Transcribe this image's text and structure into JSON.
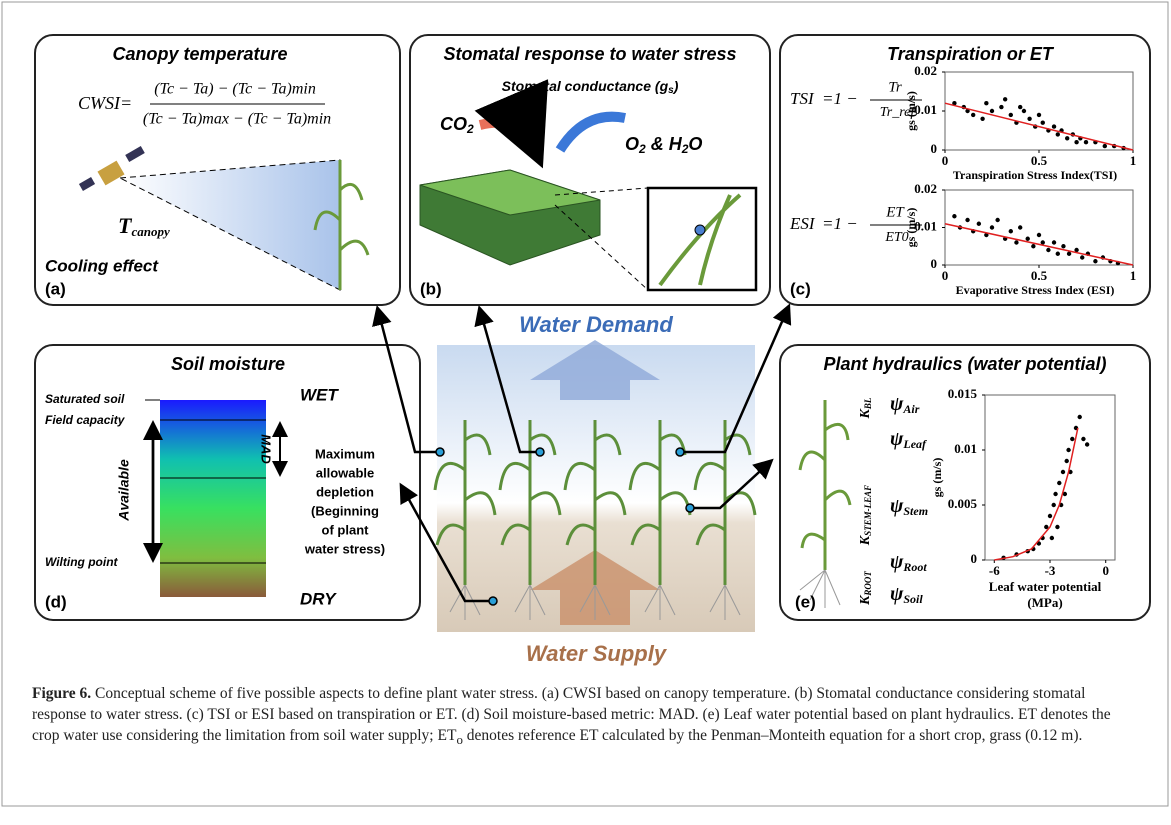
{
  "panel_a": {
    "title": "Canopy temperature",
    "formula": {
      "lhs": "CWSI=",
      "numerator": "(Tc − Ta) − (Tc − Ta)min",
      "denominator": "(Tc − Ta)max − (Tc − Ta)min"
    },
    "canopy_label": {
      "symbol": "T",
      "subscript": "canopy"
    },
    "effect": "Cooling effect",
    "tag": "(a)"
  },
  "panel_b": {
    "title": "Stomatal response to water stress",
    "conductance": {
      "prefix": "Stomatal conductance (",
      "symbol": "g",
      "subscript": "s",
      "suffix": ")"
    },
    "input": [
      "CO",
      "2"
    ],
    "output": [
      "O",
      "2",
      " & H",
      "2",
      "O"
    ],
    "tag": "(b)"
  },
  "panel_c": {
    "title": "Transpiration or ET",
    "tag": "(c)",
    "formulas": [
      {
        "lhs": "TSI",
        "op": "=1 −",
        "numerator": "Tr",
        "denominator": "Tr_ref"
      },
      {
        "lhs": "ESI",
        "op": "=1 −",
        "numerator": "ET",
        "denominator": "ET0"
      }
    ],
    "plots": [
      {
        "ylabel": "gs (m/s)",
        "xlabel": "Transpiration Stress Index(TSI)",
        "xlim": [
          0,
          1
        ],
        "ylim": [
          0,
          0.02
        ],
        "xticks": [
          0,
          0.5,
          1
        ],
        "yticks": [
          0,
          0.01,
          0.02
        ],
        "x": [
          0.05,
          0.1,
          0.12,
          0.15,
          0.2,
          0.22,
          0.25,
          0.3,
          0.32,
          0.35,
          0.38,
          0.4,
          0.42,
          0.45,
          0.48,
          0.5,
          0.52,
          0.55,
          0.58,
          0.6,
          0.62,
          0.65,
          0.68,
          0.7,
          0.72,
          0.75,
          0.8,
          0.85,
          0.9,
          0.95
        ],
        "y": [
          0.012,
          0.011,
          0.01,
          0.009,
          0.008,
          0.012,
          0.01,
          0.011,
          0.013,
          0.009,
          0.007,
          0.011,
          0.01,
          0.008,
          0.006,
          0.009,
          0.007,
          0.005,
          0.006,
          0.004,
          0.005,
          0.003,
          0.004,
          0.002,
          0.003,
          0.002,
          0.002,
          0.001,
          0.001,
          0.0005
        ],
        "trend": {
          "x": [
            0,
            1
          ],
          "y": [
            0.012,
            0
          ]
        }
      },
      {
        "ylabel": "gs (m/s)",
        "xlabel": "Evaporative Stress Index (ESI)",
        "xlim": [
          0,
          1
        ],
        "ylim": [
          0,
          0.02
        ],
        "xticks": [
          0,
          0.5,
          1
        ],
        "yticks": [
          0,
          0.01,
          0.02
        ],
        "x": [
          0.05,
          0.08,
          0.12,
          0.15,
          0.18,
          0.22,
          0.25,
          0.28,
          0.32,
          0.35,
          0.38,
          0.4,
          0.44,
          0.47,
          0.5,
          0.52,
          0.55,
          0.58,
          0.6,
          0.63,
          0.66,
          0.7,
          0.73,
          0.76,
          0.8,
          0.84,
          0.88,
          0.92
        ],
        "y": [
          0.013,
          0.01,
          0.012,
          0.009,
          0.011,
          0.008,
          0.01,
          0.012,
          0.007,
          0.009,
          0.006,
          0.01,
          0.007,
          0.005,
          0.008,
          0.006,
          0.004,
          0.006,
          0.003,
          0.005,
          0.003,
          0.004,
          0.002,
          0.003,
          0.001,
          0.002,
          0.001,
          0.0005
        ],
        "trend": {
          "x": [
            0,
            1
          ],
          "y": [
            0.011,
            0
          ]
        }
      }
    ]
  },
  "center": {
    "top": "Water Demand",
    "bottom": "Water Supply"
  },
  "panel_d": {
    "title": "Soil moisture",
    "levels": [
      "Saturated soil",
      "Field capacity",
      "Wilting point"
    ],
    "available": "Available",
    "wet": "WET",
    "dry": "DRY",
    "mad": "MAD",
    "mad_note": [
      "Maximum",
      "allowable",
      "depletion",
      "(Beginning",
      "of plant",
      "water stress)"
    ],
    "tag": "(d)"
  },
  "panel_e": {
    "title": "Plant hydraulics (water potential)",
    "tag": "(e)",
    "potentials": [
      {
        "symbol": "ψ",
        "subscript": "Air"
      },
      {
        "symbol": "ψ",
        "subscript": "Leaf"
      },
      {
        "symbol": "ψ",
        "subscript": "Stem"
      },
      {
        "symbol": "ψ",
        "subscript": "Root"
      },
      {
        "symbol": "ψ",
        "subscript": "Soil"
      }
    ],
    "conductances": [
      {
        "symbol": "K",
        "subscript": "BL"
      },
      {
        "symbol": "K",
        "subscript": "STEM-LEAF"
      },
      {
        "symbol": "K",
        "subscript": "ROOT"
      }
    ],
    "plot": {
      "ylabel": "gs (m/s)",
      "xlabel": [
        "Leaf water potential",
        "(MPa)"
      ],
      "xlim": [
        -6.5,
        0.5
      ],
      "ylim": [
        0,
        0.015
      ],
      "xticks": [
        -6,
        -3,
        0
      ],
      "yticks": [
        0,
        0.005,
        0.01,
        0.015
      ],
      "x": [
        -5.5,
        -4.8,
        -4.2,
        -3.9,
        -3.6,
        -3.4,
        -3.2,
        -3.0,
        -2.9,
        -2.8,
        -2.7,
        -2.6,
        -2.5,
        -2.4,
        -2.3,
        -2.2,
        -2.1,
        -2.0,
        -1.9,
        -1.8,
        -1.6,
        -1.4,
        -1.2,
        -1.0
      ],
      "y": [
        0.0002,
        0.0005,
        0.0008,
        0.001,
        0.0015,
        0.002,
        0.003,
        0.004,
        0.002,
        0.005,
        0.006,
        0.003,
        0.007,
        0.005,
        0.008,
        0.006,
        0.009,
        0.01,
        0.008,
        0.011,
        0.012,
        0.013,
        0.011,
        0.0105
      ],
      "trend": {
        "x": [
          -6,
          -5,
          -4,
          -3,
          -2.5,
          -2,
          -1.5
        ],
        "y": [
          0,
          0.0003,
          0.001,
          0.003,
          0.005,
          0.008,
          0.012
        ]
      }
    }
  },
  "caption": {
    "label": "Figure 6.",
    "parts": [
      " Conceptual scheme of five possible aspects to define plant water stress. (a) CWSI based on canopy temperature. (b) Stomatal conductance considering stomatal response to water stress. (c) TSI or ESI based on transpiration or ET. (d) Soil moisture-based metric: MAD. (e) Leaf water potential based on plant hydraulics. ET denotes the crop water use considering the limitation from soil water supply; ET",
      "o",
      " denotes reference ET calculated by the Penman–Monteith equation for a short crop, grass (0.12 m)."
    ]
  }
}
